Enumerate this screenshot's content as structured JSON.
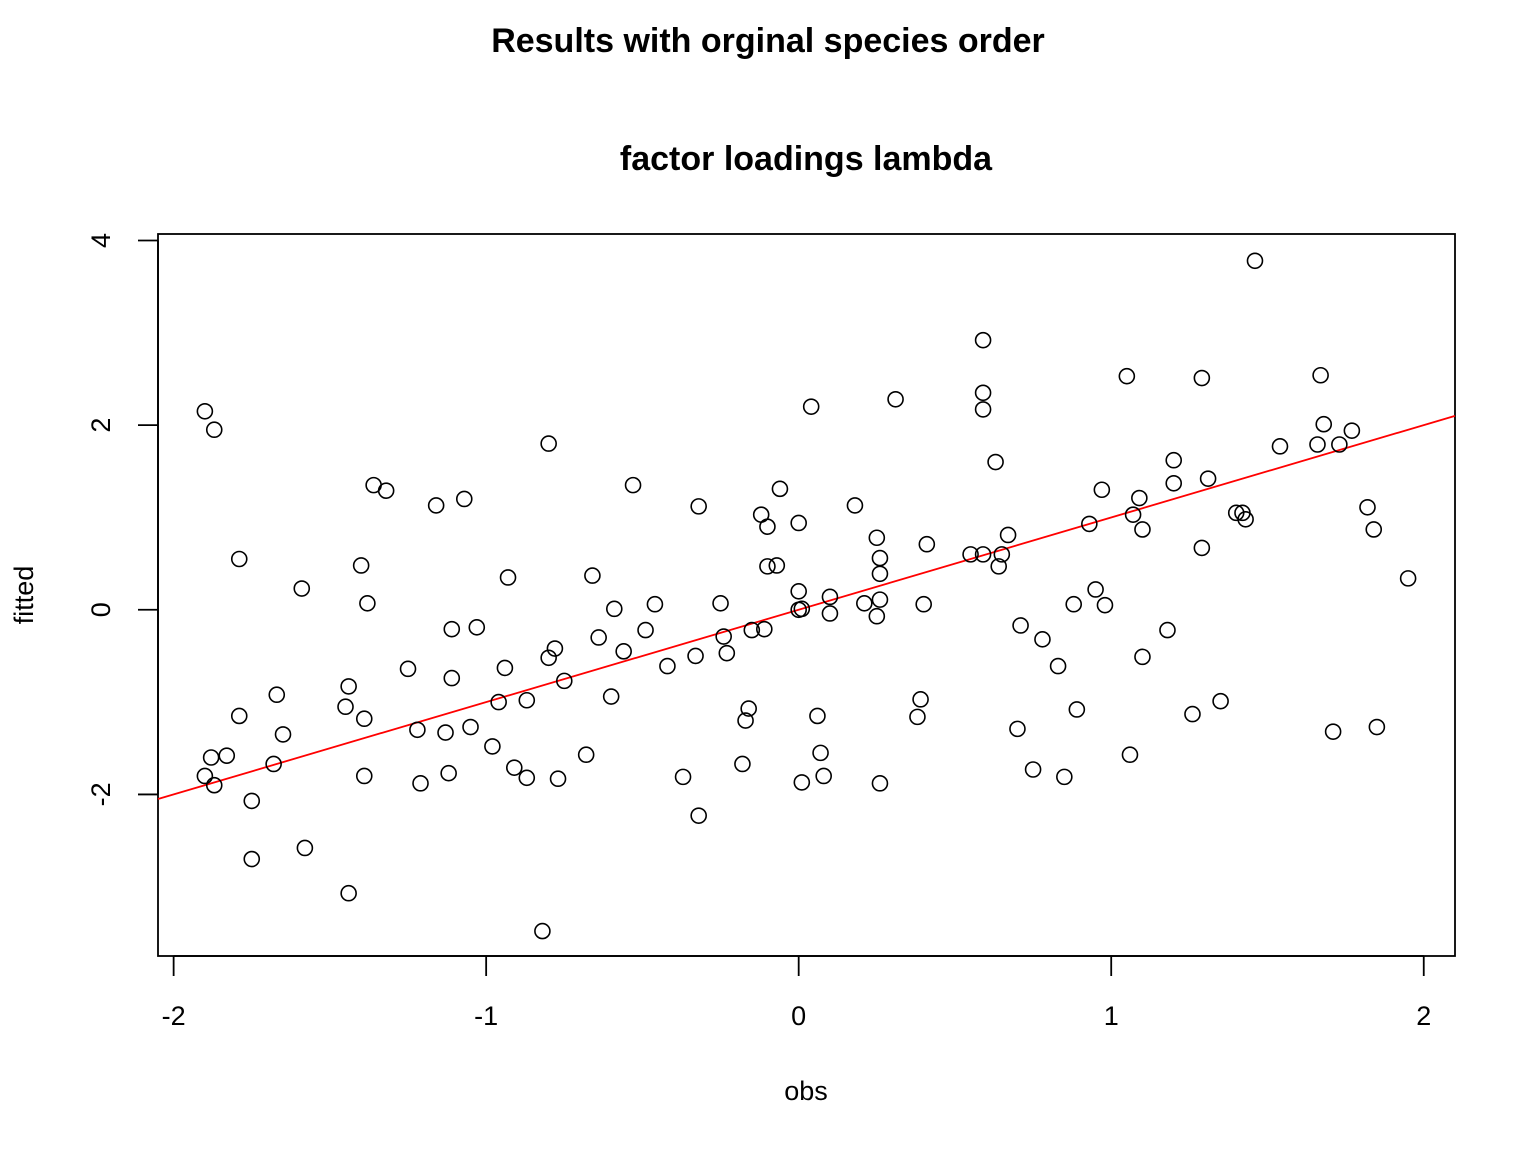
{
  "figure": {
    "suptitle": "Results with orginal species order"
  },
  "chart_data": {
    "type": "scatter",
    "title": "factor loadings lambda",
    "xlabel": "obs",
    "ylabel": "fitted",
    "xlim": [
      -2.05,
      2.1
    ],
    "ylim": [
      -3.75,
      4.07
    ],
    "xticks": [
      -2,
      -1,
      0,
      1,
      2
    ],
    "xtick_labels": [
      "-2",
      "-1",
      "0",
      "1",
      "2"
    ],
    "yticks": [
      -2,
      0,
      2,
      4
    ],
    "ytick_labels": [
      "-2",
      "0",
      "2",
      "4"
    ],
    "grid": false,
    "point_style": "open-circle",
    "point_color": "#000000",
    "fit_line": {
      "intercept": 0.0,
      "slope": 1.0,
      "color": "#ff0000"
    },
    "points": [
      [
        -1.9,
        2.15
      ],
      [
        -1.87,
        1.95
      ],
      [
        -1.9,
        -1.8
      ],
      [
        -1.88,
        -1.6
      ],
      [
        -1.87,
        -1.9
      ],
      [
        -1.83,
        -1.58
      ],
      [
        -1.79,
        0.55
      ],
      [
        -1.79,
        -1.15
      ],
      [
        -1.75,
        -2.07
      ],
      [
        -1.75,
        -2.7
      ],
      [
        -1.68,
        -1.67
      ],
      [
        -1.67,
        -0.92
      ],
      [
        -1.65,
        -1.35
      ],
      [
        -1.59,
        0.23
      ],
      [
        -1.58,
        -2.58
      ],
      [
        -1.45,
        -1.05
      ],
      [
        -1.44,
        -0.83
      ],
      [
        -1.44,
        -3.07
      ],
      [
        -1.4,
        0.48
      ],
      [
        -1.39,
        -1.18
      ],
      [
        -1.39,
        -1.8
      ],
      [
        -1.38,
        0.07
      ],
      [
        -1.36,
        1.35
      ],
      [
        -1.32,
        1.29
      ],
      [
        -1.25,
        -0.64
      ],
      [
        -1.22,
        -1.3
      ],
      [
        -1.21,
        -1.88
      ],
      [
        -1.16,
        1.13
      ],
      [
        -1.13,
        -1.33
      ],
      [
        -1.12,
        -1.77
      ],
      [
        -1.11,
        -0.21
      ],
      [
        -1.11,
        -0.74
      ],
      [
        -1.07,
        1.2
      ],
      [
        -1.05,
        -1.27
      ],
      [
        -1.03,
        -0.19
      ],
      [
        -0.98,
        -1.48
      ],
      [
        -0.96,
        -1.0
      ],
      [
        -0.94,
        -0.63
      ],
      [
        -0.93,
        0.35
      ],
      [
        -0.91,
        -1.71
      ],
      [
        -0.87,
        -0.98
      ],
      [
        -0.87,
        -1.82
      ],
      [
        -0.82,
        -3.48
      ],
      [
        -0.8,
        1.8
      ],
      [
        -0.8,
        -0.52
      ],
      [
        -0.78,
        -0.42
      ],
      [
        -0.77,
        -1.83
      ],
      [
        -0.75,
        -0.77
      ],
      [
        -0.68,
        -1.57
      ],
      [
        -0.66,
        0.37
      ],
      [
        -0.64,
        -0.3
      ],
      [
        -0.6,
        -0.94
      ],
      [
        -0.59,
        0.01
      ],
      [
        -0.56,
        -0.45
      ],
      [
        -0.53,
        1.35
      ],
      [
        -0.49,
        -0.22
      ],
      [
        -0.46,
        0.06
      ],
      [
        -0.42,
        -0.61
      ],
      [
        -0.37,
        -1.81
      ],
      [
        -0.33,
        -0.5
      ],
      [
        -0.32,
        1.12
      ],
      [
        -0.32,
        -2.23
      ],
      [
        -0.25,
        0.07
      ],
      [
        -0.24,
        -0.29
      ],
      [
        -0.23,
        -0.47
      ],
      [
        -0.18,
        -1.67
      ],
      [
        -0.17,
        -1.2
      ],
      [
        -0.16,
        -1.07
      ],
      [
        -0.15,
        -0.22
      ],
      [
        -0.12,
        1.03
      ],
      [
        -0.11,
        -0.21
      ],
      [
        -0.1,
        0.47
      ],
      [
        -0.1,
        0.9
      ],
      [
        -0.07,
        0.48
      ],
      [
        -0.06,
        1.31
      ],
      [
        0.0,
        0.94
      ],
      [
        0.0,
        0.2
      ],
      [
        0.0,
        0.0
      ],
      [
        0.01,
        0.01
      ],
      [
        0.01,
        -1.87
      ],
      [
        0.04,
        2.2
      ],
      [
        0.06,
        -1.15
      ],
      [
        0.07,
        -1.55
      ],
      [
        0.08,
        -1.8
      ],
      [
        0.1,
        0.14
      ],
      [
        0.1,
        -0.04
      ],
      [
        0.18,
        1.13
      ],
      [
        0.21,
        0.07
      ],
      [
        0.25,
        -0.07
      ],
      [
        0.25,
        0.78
      ],
      [
        0.26,
        0.11
      ],
      [
        0.26,
        0.39
      ],
      [
        0.26,
        0.56
      ],
      [
        0.26,
        -1.88
      ],
      [
        0.31,
        2.28
      ],
      [
        0.38,
        -1.16
      ],
      [
        0.39,
        -0.97
      ],
      [
        0.4,
        0.06
      ],
      [
        0.41,
        0.71
      ],
      [
        0.55,
        0.6
      ],
      [
        0.59,
        2.92
      ],
      [
        0.59,
        2.35
      ],
      [
        0.59,
        2.17
      ],
      [
        0.59,
        0.6
      ],
      [
        0.63,
        1.6
      ],
      [
        0.64,
        0.47
      ],
      [
        0.65,
        0.6
      ],
      [
        0.67,
        0.81
      ],
      [
        0.7,
        -1.29
      ],
      [
        0.71,
        -0.17
      ],
      [
        0.75,
        -1.73
      ],
      [
        0.78,
        -0.32
      ],
      [
        0.83,
        -0.61
      ],
      [
        0.85,
        -1.81
      ],
      [
        0.88,
        0.06
      ],
      [
        0.89,
        -1.08
      ],
      [
        0.93,
        0.93
      ],
      [
        0.95,
        0.22
      ],
      [
        0.97,
        1.3
      ],
      [
        0.98,
        0.05
      ],
      [
        1.05,
        2.53
      ],
      [
        1.06,
        -1.57
      ],
      [
        1.07,
        1.03
      ],
      [
        1.09,
        1.21
      ],
      [
        1.1,
        0.87
      ],
      [
        1.1,
        -0.51
      ],
      [
        1.18,
        -0.22
      ],
      [
        1.2,
        1.62
      ],
      [
        1.2,
        1.37
      ],
      [
        1.26,
        -1.13
      ],
      [
        1.29,
        2.51
      ],
      [
        1.29,
        0.67
      ],
      [
        1.31,
        1.42
      ],
      [
        1.35,
        -0.99
      ],
      [
        1.4,
        1.05
      ],
      [
        1.42,
        1.05
      ],
      [
        1.43,
        0.98
      ],
      [
        1.46,
        3.78
      ],
      [
        1.54,
        1.77
      ],
      [
        1.66,
        1.79
      ],
      [
        1.67,
        2.54
      ],
      [
        1.68,
        2.01
      ],
      [
        1.71,
        -1.32
      ],
      [
        1.73,
        1.79
      ],
      [
        1.77,
        1.94
      ],
      [
        1.82,
        1.11
      ],
      [
        1.84,
        0.87
      ],
      [
        1.85,
        -1.27
      ],
      [
        1.95,
        0.34
      ]
    ]
  }
}
